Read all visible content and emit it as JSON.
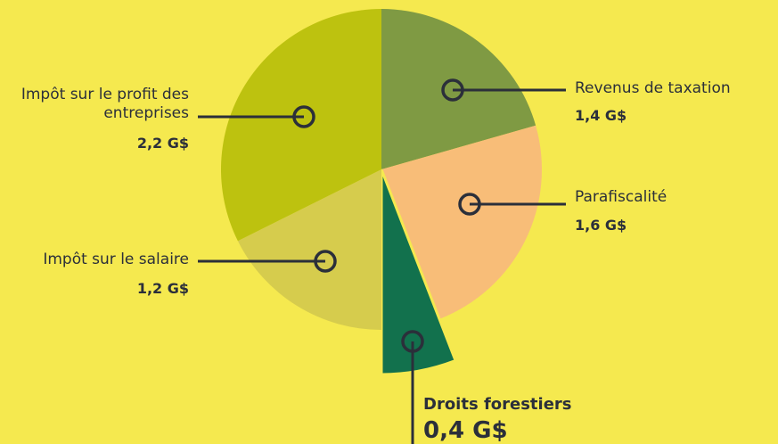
{
  "chart_data": {
    "type": "pie",
    "categories": [
      "Revenus de taxation",
      "Parafiscalité",
      "Droits forestiers",
      "Impôt sur le salaire",
      "Impôt sur le profit des entreprises"
    ],
    "values": [
      1.4,
      1.6,
      0.4,
      1.2,
      2.2
    ],
    "value_labels": [
      "1,4 G$",
      "1,6 G$",
      "0,4 G$",
      "1,2 G$",
      "2,2 G$"
    ],
    "colors": [
      "#7f9a43",
      "#f8bd78",
      "#12714d",
      "#d6cc4d",
      "#bdc20f"
    ]
  }
}
